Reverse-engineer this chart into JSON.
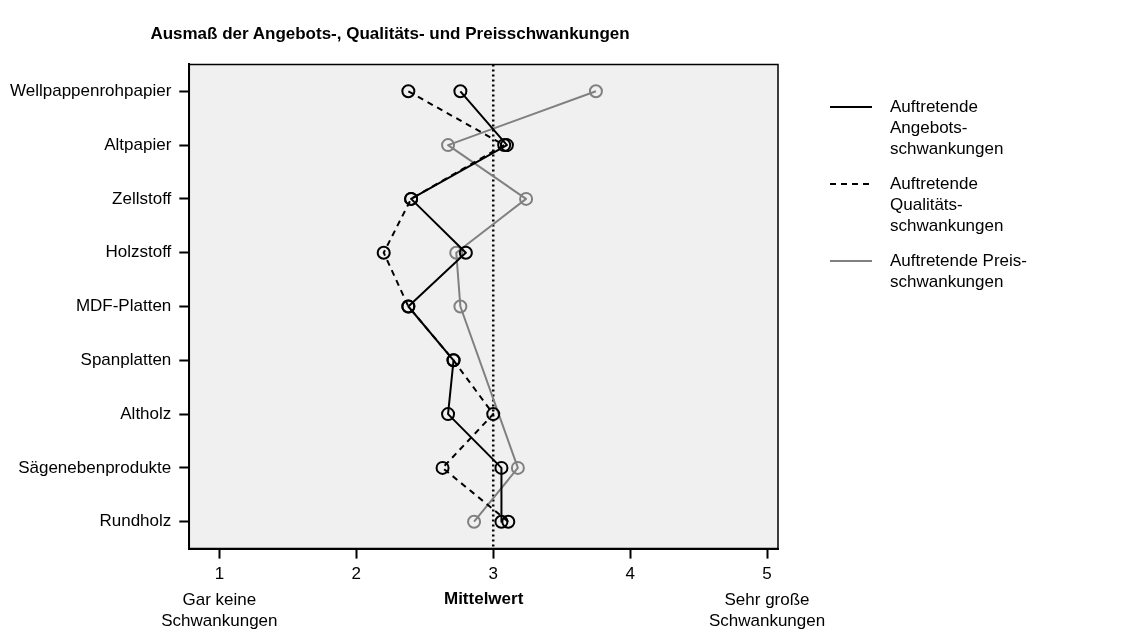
{
  "chart_data": {
    "type": "line",
    "orientation": "horizontal",
    "title": "Ausmaß der Angebots-, Qualitäts- und Preisschwankungen",
    "xlabel": "Mittelwert",
    "categories": [
      "Wellpappenrohpapier",
      "Altpapier",
      "Zellstoff",
      "Holzstoff",
      "MDF-Platten",
      "Spanplatten",
      "Altholz",
      "Sägenebenprodukte",
      "Rundholz"
    ],
    "series": [
      {
        "name": "Auftretende Angebots-schwankungen",
        "color": "#000000",
        "line_style": "solid",
        "values": [
          2.76,
          3.1,
          2.4,
          2.8,
          2.38,
          2.71,
          2.67,
          3.06,
          3.06
        ]
      },
      {
        "name": "Auftretende Qualitäts-schwankungen",
        "color": "#000000",
        "line_style": "dashed",
        "values": [
          2.38,
          3.08,
          2.4,
          2.2,
          2.38,
          2.71,
          3.0,
          2.63,
          3.11
        ]
      },
      {
        "name": "Auftretende Preis-schwankungen",
        "color": "#808080",
        "line_style": "solid",
        "values": [
          3.75,
          2.67,
          3.24,
          2.73,
          2.76,
          null,
          null,
          3.18,
          2.86
        ]
      }
    ],
    "xlim": [
      0.78,
      5.08
    ],
    "xticks": [
      1,
      2,
      3,
      4,
      5
    ],
    "ref_lines": [
      {
        "axis": "x",
        "value": 3,
        "line_style": "dotted",
        "color": "#000000"
      }
    ],
    "annotations": [
      "Gar keine Schwankungen",
      "Sehr große Schwankungen"
    ],
    "marker": "circle",
    "grid": false,
    "legend": "right"
  }
}
